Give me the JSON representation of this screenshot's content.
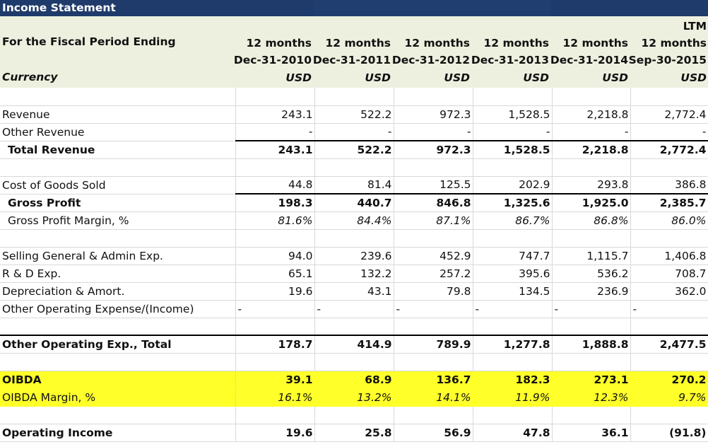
{
  "sheet": {
    "title": "Income Statement",
    "header": {
      "period_label": "For the Fiscal Period Ending",
      "currency_label": "Currency",
      "columns": [
        {
          "line1": "",
          "line2": "12 months",
          "line3": "Dec-31-2010",
          "currency": "USD"
        },
        {
          "line1": "",
          "line2": "12 months",
          "line3": "Dec-31-2011",
          "currency": "USD"
        },
        {
          "line1": "",
          "line2": "12 months",
          "line3": "Dec-31-2012",
          "currency": "USD"
        },
        {
          "line1": "",
          "line2": "12 months",
          "line3": "Dec-31-2013",
          "currency": "USD"
        },
        {
          "line1": "",
          "line2": "12 months",
          "line3": "Dec-31-2014",
          "currency": "USD"
        },
        {
          "line1": "LTM",
          "line2": "12 months",
          "line3": "Sep-30-2015",
          "currency": "USD"
        }
      ]
    },
    "rows": [
      {
        "label": "",
        "values": [
          "",
          "",
          "",
          "",
          "",
          ""
        ],
        "style": "blank"
      },
      {
        "label": "Revenue",
        "values": [
          "243.1",
          "522.2",
          "972.3",
          "1,528.5",
          "2,218.8",
          "2,772.4"
        ],
        "style": "plain"
      },
      {
        "label": "Other Revenue",
        "values": [
          "-",
          "-",
          "-",
          "-",
          "-",
          "-"
        ],
        "style": "plain"
      },
      {
        "label": "Total Revenue",
        "values": [
          "243.1",
          "522.2",
          "972.3",
          "1,528.5",
          "2,218.8",
          "2,772.4"
        ],
        "style": "total"
      },
      {
        "label": "",
        "values": [
          "",
          "",
          "",
          "",
          "",
          ""
        ],
        "style": "blank"
      },
      {
        "label": "Cost of Goods Sold",
        "values": [
          "44.8",
          "81.4",
          "125.5",
          "202.9",
          "293.8",
          "386.8"
        ],
        "style": "plain"
      },
      {
        "label": "Gross Profit",
        "values": [
          "198.3",
          "440.7",
          "846.8",
          "1,325.6",
          "1,925.0",
          "2,385.7"
        ],
        "style": "total"
      },
      {
        "label": "Gross Profit Margin, %",
        "values": [
          "81.6%",
          "84.4%",
          "87.1%",
          "86.7%",
          "86.8%",
          "86.0%"
        ],
        "style": "margin-indent"
      },
      {
        "label": "",
        "values": [
          "",
          "",
          "",
          "",
          "",
          ""
        ],
        "style": "blank"
      },
      {
        "label": "Selling General & Admin Exp.",
        "values": [
          "94.0",
          "239.6",
          "452.9",
          "747.7",
          "1,115.7",
          "1,406.8"
        ],
        "style": "plain"
      },
      {
        "label": "R & D Exp.",
        "values": [
          "65.1",
          "132.2",
          "257.2",
          "395.6",
          "536.2",
          "708.7"
        ],
        "style": "plain"
      },
      {
        "label": "Depreciation & Amort.",
        "values": [
          "19.6",
          "43.1",
          "79.8",
          "134.5",
          "236.9",
          "362.0"
        ],
        "style": "plain"
      },
      {
        "label": "Other Operating Expense/(Income)",
        "values": [
          "-",
          "-",
          "-",
          "-",
          "-",
          "-"
        ],
        "style": "dash-left"
      },
      {
        "label": "",
        "values": [
          "",
          "",
          "",
          "",
          "",
          ""
        ],
        "style": "blank"
      },
      {
        "label": "Other Operating Exp., Total",
        "values": [
          "178.7",
          "414.9",
          "789.9",
          "1,277.8",
          "1,888.8",
          "2,477.5"
        ],
        "style": "grand"
      },
      {
        "label": "",
        "values": [
          "",
          "",
          "",
          "",
          "",
          ""
        ],
        "style": "blank"
      },
      {
        "label": "OIBDA",
        "values": [
          "39.1",
          "68.9",
          "136.7",
          "182.3",
          "273.1",
          "270.2"
        ],
        "style": "hl-bold"
      },
      {
        "label": "OIBDA Margin, %",
        "values": [
          "16.1%",
          "13.2%",
          "14.1%",
          "11.9%",
          "12.3%",
          "9.7%"
        ],
        "style": "hl-ital"
      },
      {
        "label": "",
        "values": [
          "",
          "",
          "",
          "",
          "",
          ""
        ],
        "style": "blank"
      },
      {
        "label": "Operating Income",
        "values": [
          "19.6",
          "25.8",
          "56.9",
          "47.8",
          "36.1",
          "(91.8)"
        ],
        "style": "bold"
      }
    ]
  }
}
